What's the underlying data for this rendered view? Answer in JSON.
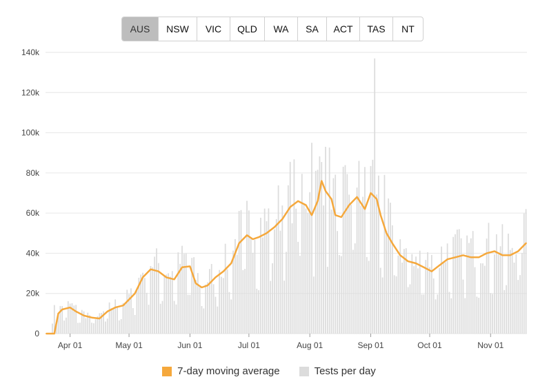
{
  "tabs": [
    {
      "label": "AUS",
      "active": true
    },
    {
      "label": "NSW",
      "active": false
    },
    {
      "label": "VIC",
      "active": false
    },
    {
      "label": "QLD",
      "active": false
    },
    {
      "label": "WA",
      "active": false
    },
    {
      "label": "SA",
      "active": false
    },
    {
      "label": "ACT",
      "active": false
    },
    {
      "label": "TAS",
      "active": false
    },
    {
      "label": "NT",
      "active": false
    }
  ],
  "legend": {
    "avg_label": "7-day moving average",
    "tests_label": "Tests per day"
  },
  "colors": {
    "avg": "#f5a83c",
    "tests": "#dcdcdc",
    "grid": "#e6e6e6",
    "axis_text": "#444444"
  },
  "chart_data": {
    "type": "bar",
    "title": "",
    "xlabel": "",
    "ylabel": "",
    "start_date": "2020-03-20",
    "end_date": "2020-11-19",
    "ylim": [
      0,
      140000
    ],
    "y_ticks": [
      0,
      20000,
      40000,
      60000,
      80000,
      100000,
      120000,
      140000
    ],
    "y_tick_labels": [
      "0",
      "20k",
      "40k",
      "60k",
      "80k",
      "100k",
      "120k",
      "140k"
    ],
    "x_ticks": [
      {
        "date": "2020-04-01",
        "label": "Apr 01"
      },
      {
        "date": "2020-05-01",
        "label": "May 01"
      },
      {
        "date": "2020-06-01",
        "label": "Jun 01"
      },
      {
        "date": "2020-07-01",
        "label": "Jul 01"
      },
      {
        "date": "2020-08-01",
        "label": "Aug 01"
      },
      {
        "date": "2020-09-01",
        "label": "Sep 01"
      },
      {
        "date": "2020-10-01",
        "label": "Oct 01"
      },
      {
        "date": "2020-11-01",
        "label": "Nov 01"
      }
    ],
    "grid": true,
    "legend_position": "bottom",
    "series": [
      {
        "name": "7-day moving average",
        "type": "line",
        "x": [
          "2020-03-20",
          "2020-03-24",
          "2020-03-26",
          "2020-03-28",
          "2020-04-01",
          "2020-04-04",
          "2020-04-08",
          "2020-04-12",
          "2020-04-16",
          "2020-04-20",
          "2020-04-24",
          "2020-04-28",
          "2020-05-01",
          "2020-05-04",
          "2020-05-08",
          "2020-05-12",
          "2020-05-16",
          "2020-05-20",
          "2020-05-24",
          "2020-05-28",
          "2020-06-01",
          "2020-06-04",
          "2020-06-07",
          "2020-06-10",
          "2020-06-14",
          "2020-06-18",
          "2020-06-22",
          "2020-06-26",
          "2020-06-30",
          "2020-07-03",
          "2020-07-06",
          "2020-07-10",
          "2020-07-14",
          "2020-07-18",
          "2020-07-22",
          "2020-07-26",
          "2020-07-30",
          "2020-08-02",
          "2020-08-05",
          "2020-08-07",
          "2020-08-09",
          "2020-08-12",
          "2020-08-14",
          "2020-08-17",
          "2020-08-21",
          "2020-08-25",
          "2020-08-29",
          "2020-09-01",
          "2020-09-04",
          "2020-09-06",
          "2020-09-09",
          "2020-09-12",
          "2020-09-16",
          "2020-09-20",
          "2020-09-24",
          "2020-09-28",
          "2020-10-02",
          "2020-10-06",
          "2020-10-10",
          "2020-10-14",
          "2020-10-18",
          "2020-10-22",
          "2020-10-26",
          "2020-10-30",
          "2020-11-03",
          "2020-11-07",
          "2020-11-11",
          "2020-11-15",
          "2020-11-19"
        ],
        "y": [
          0,
          0,
          10000,
          12000,
          13000,
          11000,
          9000,
          8000,
          7500,
          11000,
          13000,
          14000,
          17000,
          20000,
          28000,
          32000,
          31000,
          28000,
          27000,
          33000,
          33500,
          25000,
          23000,
          24000,
          28000,
          31000,
          35000,
          45000,
          49000,
          47000,
          48000,
          50000,
          53000,
          57000,
          63000,
          66000,
          64000,
          59000,
          66000,
          76000,
          71000,
          67000,
          59000,
          58000,
          64000,
          68000,
          62000,
          70000,
          67000,
          59000,
          50000,
          45000,
          39000,
          36000,
          35000,
          33000,
          31000,
          34000,
          37000,
          38000,
          39000,
          38000,
          38000,
          40000,
          41000,
          39000,
          39000,
          41000,
          45000
        ]
      },
      {
        "name": "Tests per day",
        "type": "bar",
        "peaks": [
          {
            "date": "2020-08-02",
            "value": 95000
          },
          {
            "date": "2020-08-09",
            "value": 93000
          },
          {
            "date": "2020-08-26",
            "value": 86000
          },
          {
            "date": "2020-09-03",
            "value": 137000
          },
          {
            "date": "2020-09-08",
            "value": 79000
          },
          {
            "date": "2020-11-19",
            "value": 62000
          }
        ]
      }
    ]
  }
}
